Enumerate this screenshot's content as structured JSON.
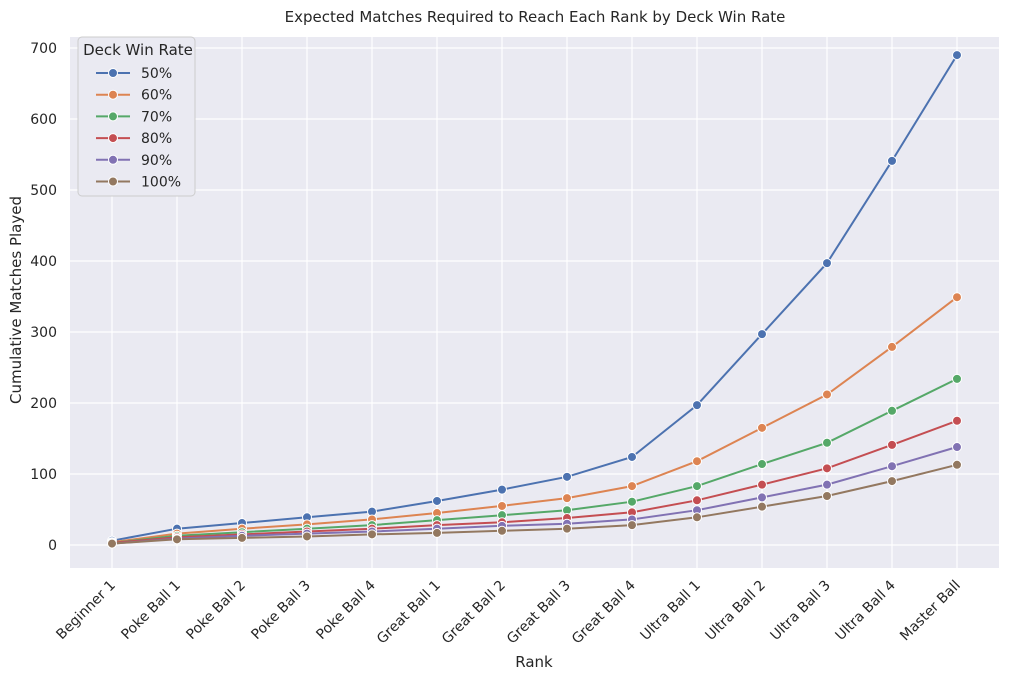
{
  "chart_data": {
    "type": "line",
    "title": "Expected Matches Required to Reach Each Rank by Deck Win Rate",
    "xlabel": "Rank",
    "ylabel": "Cumulative Matches Played",
    "categories": [
      "Beginner 1",
      "Poke Ball 1",
      "Poke Ball 2",
      "Poke Ball 3",
      "Poke Ball 4",
      "Great Ball 1",
      "Great Ball 2",
      "Great Ball 3",
      "Great Ball 4",
      "Ultra Ball 1",
      "Ultra Ball 2",
      "Ultra Ball 3",
      "Ultra Ball 4",
      "Master Ball"
    ],
    "ylim": [
      -32,
      723
    ],
    "yticks": [
      0,
      100,
      200,
      300,
      400,
      500,
      600,
      700
    ],
    "grid": true,
    "legend": {
      "title": "Deck Win Rate",
      "placement": "top-left"
    },
    "series": [
      {
        "name": "50%",
        "color": "#4c72b0",
        "values": [
          6,
          23,
          31,
          39,
          47,
          62,
          78,
          96,
          124,
          197,
          297,
          397,
          541,
          690
        ]
      },
      {
        "name": "60%",
        "color": "#dd8452",
        "values": [
          4,
          16,
          23,
          29,
          36,
          45,
          55,
          66,
          83,
          118,
          165,
          212,
          279,
          349
        ]
      },
      {
        "name": "70%",
        "color": "#55a868",
        "values": [
          3,
          13,
          18,
          23,
          28,
          35,
          42,
          49,
          61,
          83,
          114,
          144,
          189,
          234
        ]
      },
      {
        "name": "80%",
        "color": "#c44e52",
        "values": [
          3,
          11,
          15,
          19,
          23,
          28,
          32,
          38,
          46,
          63,
          85,
          108,
          141,
          175
        ]
      },
      {
        "name": "90%",
        "color": "#8172b3",
        "values": [
          2,
          9,
          13,
          16,
          19,
          23,
          27,
          30,
          36,
          49,
          67,
          85,
          111,
          138
        ]
      },
      {
        "name": "100%",
        "color": "#937860",
        "values": [
          2,
          8,
          10,
          12,
          15,
          17,
          20,
          23,
          28,
          39,
          54,
          69,
          90,
          113
        ]
      }
    ]
  }
}
